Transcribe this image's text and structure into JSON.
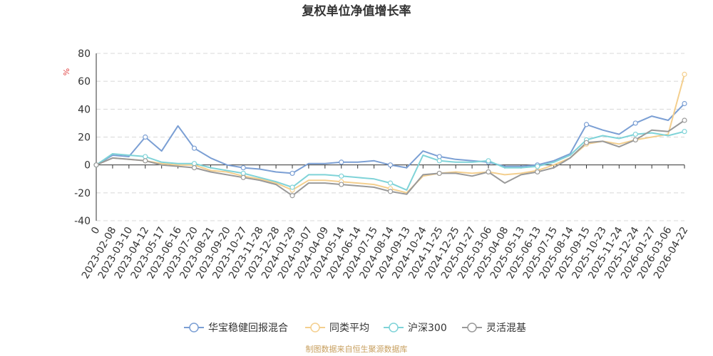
{
  "chart_data": {
    "type": "line",
    "title": "复权单位净值增长率",
    "unit_label": "%",
    "ylim": [
      -40,
      80
    ],
    "y_ticks": [
      -40,
      -20,
      0,
      20,
      40,
      60,
      80
    ],
    "grid": "horizontal dashed",
    "legend_position": "bottom",
    "x": [
      "0",
      "2023-02-08",
      "2023-03-10",
      "2023-04-12",
      "2023-05-17",
      "2023-06-16",
      "2023-07-20",
      "2023-08-21",
      "2023-09-20",
      "2023-10-27",
      "2023-11-28",
      "2023-12-28",
      "2024-01-29",
      "2024-03-07",
      "2024-04-09",
      "2024-05-14",
      "2024-06-14",
      "2024-07-15",
      "2024-08-14",
      "2024-09-13",
      "2024-10-24",
      "2024-11-25",
      "2024-12-25",
      "2025-01-27",
      "2025-03-06",
      "2025-04-08",
      "2025-05-13",
      "2025-06-13",
      "2025-07-15",
      "2025-08-14",
      "2025-09-15",
      "2025-10-23",
      "2025-11-24",
      "2025-12-24",
      "2026-01-27",
      "2026-03-06",
      "2026-04-22"
    ],
    "series": [
      {
        "name": "华宝稳健回报混合",
        "color": "#7b9fd4",
        "values": [
          0,
          7,
          6,
          20,
          10,
          28,
          12,
          5,
          0,
          -2,
          -3,
          -5,
          -6,
          1,
          1,
          2,
          2,
          3,
          0,
          -2,
          10,
          6,
          4,
          3,
          2,
          -1,
          -1,
          0,
          3,
          8,
          29,
          25,
          22,
          30,
          35,
          32,
          44
        ]
      },
      {
        "name": "同类平均",
        "color": "#f4cf8e",
        "values": [
          0,
          5,
          4,
          3,
          1,
          0,
          0,
          -4,
          -5,
          -8,
          -10,
          -13,
          -18,
          -11,
          -11,
          -12,
          -13,
          -14,
          -17,
          -20,
          -8,
          -6,
          -5,
          -6,
          -5,
          -7,
          -6,
          -4,
          0,
          5,
          15,
          17,
          15,
          18,
          20,
          22,
          65
        ]
      },
      {
        "name": "沪深300",
        "color": "#7fd3d8",
        "values": [
          0,
          8,
          7,
          6,
          2,
          1,
          1,
          -2,
          -4,
          -6,
          -9,
          -12,
          -16,
          -7,
          -7,
          -8,
          -9,
          -10,
          -13,
          -18,
          7,
          3,
          2,
          2,
          3,
          -2,
          -2,
          -1,
          2,
          7,
          18,
          21,
          19,
          22,
          23,
          21,
          24
        ]
      },
      {
        "name": "灵活混基",
        "color": "#999999",
        "values": [
          0,
          5,
          4,
          3,
          0,
          -1,
          -2,
          -5,
          -7,
          -9,
          -11,
          -14,
          -22,
          -13,
          -13,
          -14,
          -15,
          -16,
          -19,
          -21,
          -7,
          -6,
          -6,
          -8,
          -5,
          -13,
          -7,
          -5,
          -2,
          5,
          16,
          17,
          13,
          18,
          25,
          24,
          32
        ]
      }
    ]
  },
  "footer": {
    "source": "制图数据来自恒生聚源数据库"
  }
}
